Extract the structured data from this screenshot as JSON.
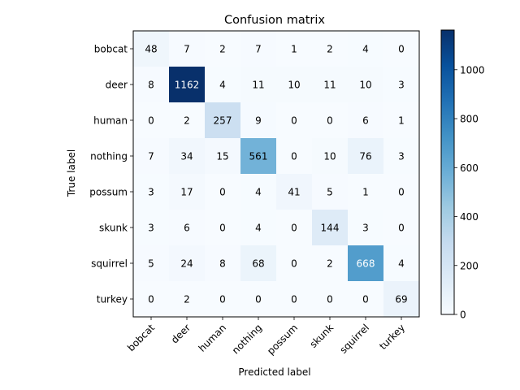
{
  "chart_data": {
    "type": "heatmap",
    "title": "Confusion matrix",
    "xlabel": "Predicted label",
    "ylabel": "True label",
    "x_categories": [
      "bobcat",
      "deer",
      "human",
      "nothing",
      "possum",
      "skunk",
      "squirrel",
      "turkey"
    ],
    "y_categories": [
      "bobcat",
      "deer",
      "human",
      "nothing",
      "possum",
      "skunk",
      "squirrel",
      "turkey"
    ],
    "values": [
      [
        48,
        7,
        2,
        7,
        1,
        2,
        4,
        0
      ],
      [
        8,
        1162,
        4,
        11,
        10,
        11,
        10,
        3
      ],
      [
        0,
        2,
        257,
        9,
        0,
        0,
        6,
        1
      ],
      [
        7,
        34,
        15,
        561,
        0,
        10,
        76,
        3
      ],
      [
        3,
        17,
        0,
        4,
        41,
        5,
        1,
        0
      ],
      [
        3,
        6,
        0,
        4,
        0,
        144,
        3,
        0
      ],
      [
        5,
        24,
        8,
        68,
        0,
        2,
        668,
        4
      ],
      [
        0,
        2,
        0,
        0,
        0,
        0,
        0,
        69
      ]
    ],
    "colormap": "Blues",
    "colorbar": {
      "min": 0,
      "max": 1162,
      "ticks": [
        0,
        200,
        400,
        600,
        800,
        1000
      ]
    },
    "grid": false
  }
}
